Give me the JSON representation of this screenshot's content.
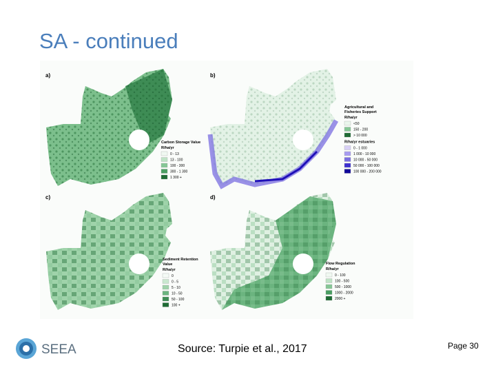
{
  "title": "SA - continued",
  "panels": [
    {
      "label": "a)",
      "legend": {
        "sections": [
          {
            "title": "Carbon Storage Value",
            "unit": "R/ha/yr",
            "items": [
              "0 - 13",
              "13 - 100",
              "100 - 300",
              "300 - 1 300",
              "1 300 +"
            ]
          }
        ]
      }
    },
    {
      "label": "b)",
      "legend": {
        "sections": [
          {
            "title": "Agricultural and Fisheries Support",
            "unit": "R/ha/yr",
            "items": [
              "<50",
              "150 - 200",
              "> 10 000"
            ]
          },
          {
            "unit": "R/ha/yr estuaries",
            "items": [
              "0 - 1 000",
              "1 000 - 10 000",
              "10 000 - 50 000",
              "50 000 - 100 000",
              "100 000 - 200 000"
            ]
          }
        ]
      }
    },
    {
      "label": "c)",
      "legend": {
        "sections": [
          {
            "title": "Sediment Retention Value",
            "unit": "R/ha/yr",
            "items": [
              "0",
              "0 - 5",
              "5 - 10",
              "10 - 50",
              "50 - 100",
              "100 +"
            ]
          }
        ]
      }
    },
    {
      "label": "d)",
      "legend": {
        "sections": [
          {
            "title": "Flow Regulation",
            "unit": "R/ha/yr",
            "items": [
              "0 - 100",
              "100 - 500",
              "500 - 1000",
              "1000 - 2000",
              "2000 +"
            ]
          }
        ]
      }
    }
  ],
  "logo": "SEEA",
  "source": "Source: Turpie et al., 2017",
  "page": "Page 30"
}
